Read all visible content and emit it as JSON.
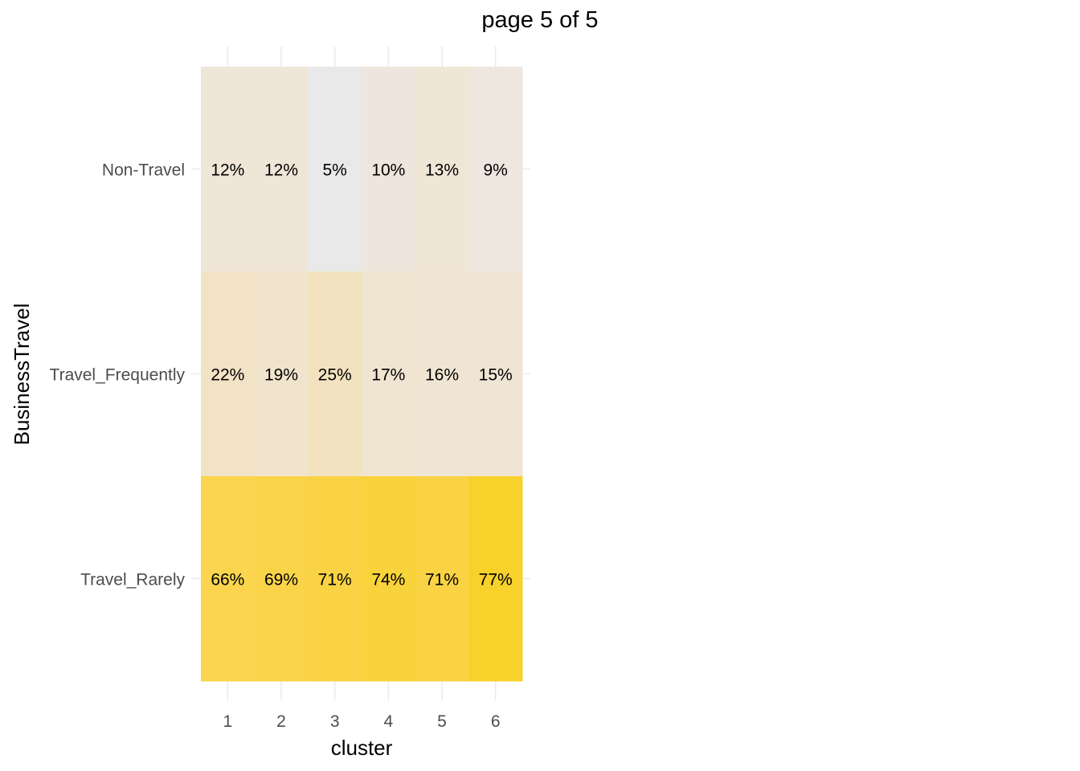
{
  "chart_data": {
    "type": "heatmap",
    "title": "page 5 of 5",
    "xlabel": "cluster",
    "ylabel": "BusinessTravel",
    "x_categories": [
      "1",
      "2",
      "3",
      "4",
      "5",
      "6"
    ],
    "y_categories": [
      "Non-Travel",
      "Travel_Frequently",
      "Travel_Rarely"
    ],
    "cells": [
      {
        "x": "1",
        "y": "Non-Travel",
        "value": 12,
        "label": "12%",
        "color": "#f0e6d8"
      },
      {
        "x": "2",
        "y": "Non-Travel",
        "value": 12,
        "label": "12%",
        "color": "#f0e6d8"
      },
      {
        "x": "3",
        "y": "Non-Travel",
        "value": 5,
        "label": "5%",
        "color": "#e9e9e9"
      },
      {
        "x": "4",
        "y": "Non-Travel",
        "value": 10,
        "label": "10%",
        "color": "#eee6dc"
      },
      {
        "x": "5",
        "y": "Non-Travel",
        "value": 13,
        "label": "13%",
        "color": "#efe6d6"
      },
      {
        "x": "6",
        "y": "Non-Travel",
        "value": 9,
        "label": "9%",
        "color": "#ede7df"
      },
      {
        "x": "1",
        "y": "Travel_Frequently",
        "value": 22,
        "label": "22%",
        "color": "#f2e3c6"
      },
      {
        "x": "2",
        "y": "Travel_Frequently",
        "value": 19,
        "label": "19%",
        "color": "#f1e4cd"
      },
      {
        "x": "3",
        "y": "Travel_Frequently",
        "value": 25,
        "label": "25%",
        "color": "#f3e2bf"
      },
      {
        "x": "4",
        "y": "Travel_Frequently",
        "value": 17,
        "label": "17%",
        "color": "#f0e5d1"
      },
      {
        "x": "5",
        "y": "Travel_Frequently",
        "value": 16,
        "label": "16%",
        "color": "#f0e5d2"
      },
      {
        "x": "6",
        "y": "Travel_Frequently",
        "value": 15,
        "label": "15%",
        "color": "#f0e5d3"
      },
      {
        "x": "1",
        "y": "Travel_Rarely",
        "value": 66,
        "label": "66%",
        "color": "#fad54d"
      },
      {
        "x": "2",
        "y": "Travel_Rarely",
        "value": 69,
        "label": "69%",
        "color": "#f9d348"
      },
      {
        "x": "3",
        "y": "Travel_Rarely",
        "value": 71,
        "label": "71%",
        "color": "#f9d343"
      },
      {
        "x": "4",
        "y": "Travel_Rarely",
        "value": 74,
        "label": "74%",
        "color": "#f9d33c"
      },
      {
        "x": "5",
        "y": "Travel_Rarely",
        "value": 71,
        "label": "71%",
        "color": "#f9d343"
      },
      {
        "x": "6",
        "y": "Travel_Rarely",
        "value": 77,
        "label": "77%",
        "color": "#f9d12b"
      }
    ],
    "grid": true,
    "legend": "none"
  }
}
